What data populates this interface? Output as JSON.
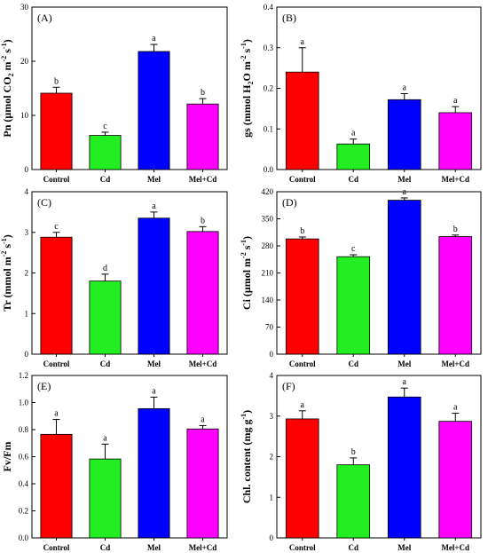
{
  "chart_data": [
    {
      "type": "bar",
      "panel_label": "(A)",
      "ylabel_main": "Pn (μmol CO",
      "ylabel_sub1": "2",
      "ylabel_mid": " m",
      "ylabel_sup1": "-2",
      "ylabel_mid2": " s",
      "ylabel_sup2": "-1",
      "ylabel_end": ")",
      "categories": [
        "Control",
        "Cd",
        "Mel",
        "Mel+Cd"
      ],
      "values": [
        14.1,
        6.3,
        21.8,
        12.1
      ],
      "errors": [
        1.1,
        0.6,
        1.3,
        1.0
      ],
      "letters": [
        "b",
        "c",
        "a",
        "b"
      ],
      "colors": [
        "#ff0000",
        "#22ee22",
        "#0000ff",
        "#ff00ff"
      ],
      "ylim": [
        0,
        30
      ],
      "yticks": [
        0,
        10,
        20,
        30
      ],
      "ytick_labels": [
        "0",
        "10",
        "20",
        "30"
      ]
    },
    {
      "type": "bar",
      "panel_label": "(B)",
      "ylabel_main": "gs (mmol H",
      "ylabel_sub1": "2",
      "ylabel_mid": "O m",
      "ylabel_sup1": "-2",
      "ylabel_mid2": " s",
      "ylabel_sup2": "-1",
      "ylabel_end": ")",
      "categories": [
        "Control",
        "Cd",
        "Mel",
        "Mel+Cd"
      ],
      "values": [
        0.24,
        0.063,
        0.172,
        0.14
      ],
      "errors": [
        0.06,
        0.012,
        0.015,
        0.015
      ],
      "letters": [
        "a",
        "a",
        "a",
        "a"
      ],
      "colors": [
        "#ff0000",
        "#22ee22",
        "#0000ff",
        "#ff00ff"
      ],
      "ylim": [
        0,
        0.4
      ],
      "yticks": [
        0,
        0.1,
        0.2,
        0.3,
        0.4
      ],
      "ytick_labels": [
        "0.0",
        "0.1",
        "0.2",
        "0.3",
        "0.4"
      ]
    },
    {
      "type": "bar",
      "panel_label": "(C)",
      "ylabel_main": "Tr (mmol m",
      "ylabel_sub1": "",
      "ylabel_mid": "",
      "ylabel_sup1": "-2",
      "ylabel_mid2": " s",
      "ylabel_sup2": "-1",
      "ylabel_end": ")",
      "categories": [
        "Control",
        "Cd",
        "Mel",
        "Mel+Cd"
      ],
      "values": [
        2.88,
        1.8,
        3.35,
        3.02
      ],
      "errors": [
        0.12,
        0.17,
        0.15,
        0.12
      ],
      "letters": [
        "c",
        "d",
        "a",
        "b"
      ],
      "colors": [
        "#ff0000",
        "#22ee22",
        "#0000ff",
        "#ff00ff"
      ],
      "ylim": [
        0,
        4
      ],
      "yticks": [
        0,
        1,
        2,
        3,
        4
      ],
      "ytick_labels": [
        "0",
        "1",
        "2",
        "3",
        "4"
      ]
    },
    {
      "type": "bar",
      "panel_label": "(D)",
      "ylabel_main": "Ci (μmol m",
      "ylabel_sub1": "",
      "ylabel_mid": "",
      "ylabel_sup1": "-2",
      "ylabel_mid2": " s",
      "ylabel_sup2": "-1",
      "ylabel_end": ")",
      "categories": [
        "Control",
        "Cd",
        "Mel",
        "Mel+Cd"
      ],
      "values": [
        298,
        252,
        398,
        304
      ],
      "errors": [
        5,
        5,
        6,
        4
      ],
      "letters": [
        "b",
        "c",
        "a",
        "b"
      ],
      "colors": [
        "#ff0000",
        "#22ee22",
        "#0000ff",
        "#ff00ff"
      ],
      "ylim": [
        0,
        420
      ],
      "yticks": [
        0,
        70,
        140,
        210,
        280,
        350,
        420
      ],
      "ytick_labels": [
        "0",
        "70",
        "140",
        "210",
        "280",
        "350",
        "420"
      ]
    },
    {
      "type": "bar",
      "panel_label": "(E)",
      "ylabel_main": "Fv/Fm",
      "ylabel_sub1": "",
      "ylabel_mid": "",
      "ylabel_sup1": "",
      "ylabel_mid2": "",
      "ylabel_sup2": "",
      "ylabel_end": "",
      "categories": [
        "Control",
        "Cd",
        "Mel",
        "Mel+Cd"
      ],
      "values": [
        0.765,
        0.583,
        0.955,
        0.805
      ],
      "errors": [
        0.11,
        0.11,
        0.085,
        0.025
      ],
      "letters": [
        "a",
        "a",
        "a",
        "a"
      ],
      "colors": [
        "#ff0000",
        "#22ee22",
        "#0000ff",
        "#ff00ff"
      ],
      "ylim": [
        0,
        1.2
      ],
      "yticks": [
        0,
        0.2,
        0.4,
        0.6,
        0.8,
        1.0,
        1.2
      ],
      "ytick_labels": [
        "0.0",
        "0.2",
        "0.4",
        "0.6",
        "0.8",
        "1.0",
        "1.2"
      ]
    },
    {
      "type": "bar",
      "panel_label": "(F)",
      "ylabel_main": "Chl. content (mg g",
      "ylabel_sub1": "",
      "ylabel_mid": "",
      "ylabel_sup1": "-1",
      "ylabel_mid2": "",
      "ylabel_sup2": "",
      "ylabel_end": ")",
      "categories": [
        "Control",
        "Cd",
        "Mel",
        "Mel+Cd"
      ],
      "values": [
        2.93,
        1.8,
        3.47,
        2.87
      ],
      "errors": [
        0.2,
        0.17,
        0.22,
        0.2
      ],
      "letters": [
        "a",
        "b",
        "a",
        "a"
      ],
      "colors": [
        "#ff0000",
        "#22ee22",
        "#0000ff",
        "#ff00ff"
      ],
      "ylim": [
        0,
        4
      ],
      "yticks": [
        0,
        1,
        2,
        3,
        4
      ],
      "ytick_labels": [
        "0",
        "1",
        "2",
        "3",
        "4"
      ]
    }
  ]
}
